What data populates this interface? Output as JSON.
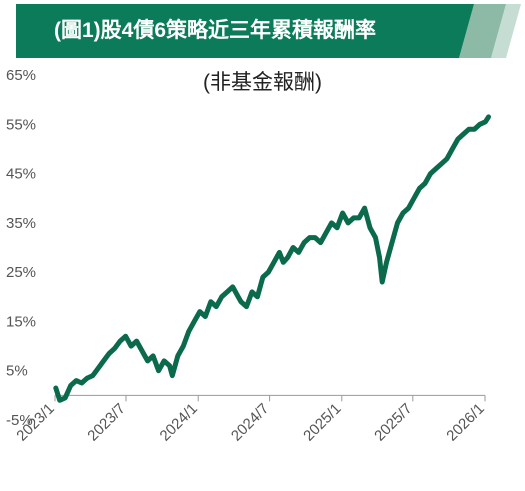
{
  "header": {
    "title": "(圖1)股4債6策略近三年累積報酬率",
    "colors": {
      "dark": "#0b7b5a",
      "mid": "#8db9a7",
      "light": "#c6ddd3"
    }
  },
  "chart_data": {
    "type": "line",
    "title": "(圖1)股4債6策略近三年累積報酬率",
    "subtitle": "(非基金報酬)",
    "xlabel": "",
    "ylabel": "",
    "ylim": [
      -5,
      65
    ],
    "yticks": [
      -5,
      5,
      15,
      25,
      35,
      45,
      55,
      65
    ],
    "ytick_labels": [
      "-5%",
      "5%",
      "15%",
      "25%",
      "35%",
      "45%",
      "55%",
      "65%"
    ],
    "xticks": [
      "2023/1",
      "2023/7",
      "2024/1",
      "2024/7",
      "2025/1",
      "2025/7",
      "2026/1"
    ],
    "xrange": [
      "2023/1",
      "2026/1"
    ],
    "grid": false,
    "line_color": "#0b6a4c",
    "series": [
      {
        "name": "",
        "x": [
          "2023/01/03",
          "2023/01/13",
          "2023/01/27",
          "2023/02/10",
          "2023/02/24",
          "2023/03/10",
          "2023/03/24",
          "2023/04/07",
          "2023/04/21",
          "2023/05/05",
          "2023/05/19",
          "2023/06/02",
          "2023/06/16",
          "2023/06/30",
          "2023/07/14",
          "2023/07/28",
          "2023/08/11",
          "2023/08/25",
          "2023/09/08",
          "2023/09/22",
          "2023/10/06",
          "2023/10/20",
          "2023/10/27",
          "2023/11/10",
          "2023/11/24",
          "2023/12/08",
          "2023/12/22",
          "2024/01/05",
          "2024/01/19",
          "2024/02/02",
          "2024/02/16",
          "2024/03/01",
          "2024/03/15",
          "2024/03/29",
          "2024/04/12",
          "2024/04/19",
          "2024/05/03",
          "2024/05/17",
          "2024/05/31",
          "2024/06/14",
          "2024/06/28",
          "2024/07/12",
          "2024/07/26",
          "2024/08/05",
          "2024/08/16",
          "2024/08/30",
          "2024/09/13",
          "2024/09/27",
          "2024/10/11",
          "2024/10/25",
          "2024/11/08",
          "2024/11/22",
          "2024/12/06",
          "2024/12/20",
          "2025/01/03",
          "2025/01/17",
          "2025/01/31",
          "2025/02/14",
          "2025/02/28",
          "2025/03/14",
          "2025/03/28",
          "2025/04/07",
          "2025/04/14",
          "2025/04/25",
          "2025/05/09",
          "2025/05/23",
          "2025/06/06",
          "2025/06/20",
          "2025/07/04",
          "2025/07/18",
          "2025/08/01",
          "2025/08/15",
          "2025/08/29",
          "2025/09/12",
          "2025/09/26",
          "2025/10/10",
          "2025/10/24",
          "2025/11/07",
          "2025/11/21",
          "2025/12/05",
          "2025/12/19",
          "2026/01/02",
          "2026/01/10"
        ],
        "values": [
          1.5,
          -1.0,
          -0.5,
          2.0,
          3.0,
          2.5,
          3.5,
          4.0,
          5.5,
          7.0,
          8.5,
          9.5,
          11.0,
          12.0,
          10.0,
          11.0,
          9.0,
          7.0,
          8.0,
          5.0,
          7.0,
          6.0,
          4.0,
          8.0,
          10.0,
          13.0,
          15.0,
          17.0,
          16.0,
          19.0,
          18.0,
          20.0,
          21.0,
          22.0,
          20.0,
          19.0,
          18.0,
          21.0,
          20.0,
          24.0,
          25.0,
          27.0,
          29.0,
          27.0,
          28.0,
          30.0,
          29.0,
          31.0,
          32.0,
          32.0,
          31.0,
          33.0,
          35.0,
          34.0,
          37.0,
          35.0,
          36.0,
          36.0,
          38.0,
          34.0,
          32.0,
          28.0,
          23.0,
          27.0,
          31.0,
          35.0,
          37.0,
          38.0,
          40.0,
          42.0,
          43.0,
          45.0,
          46.0,
          47.0,
          48.0,
          50.0,
          52.0,
          53.0,
          54.0,
          54.0,
          55.0,
          55.5,
          56.5
        ]
      }
    ]
  }
}
